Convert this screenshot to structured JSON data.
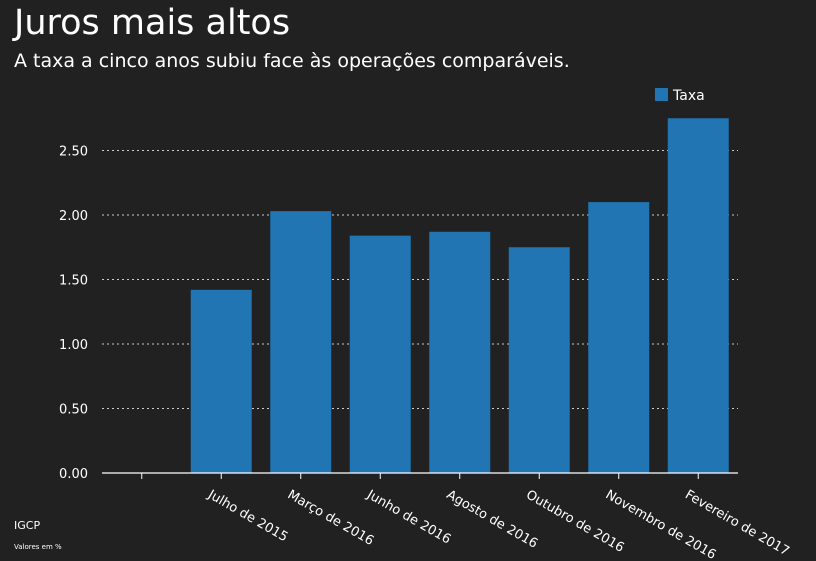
{
  "header": {
    "title": "Juros mais altos",
    "subtitle": "A taxa  a cinco anos subiu face às operações comparáveis."
  },
  "footer": {
    "source": "IGCP",
    "note": "Valores em %"
  },
  "colors": {
    "background": "#212121",
    "bar": "#2175b3",
    "text": "#ffffff",
    "grid": "#cccccc"
  },
  "chart_data": {
    "type": "bar",
    "categories": [
      "",
      "Julho de 2015",
      "Março de 2016",
      "Junho de 2016",
      "Agosto de 2016",
      "Outubro de 2016",
      "Novembro de 2016",
      "Fevereiro de 2017"
    ],
    "series": [
      {
        "name": "Taxa",
        "values": [
          null,
          1.42,
          2.03,
          1.84,
          1.87,
          1.75,
          2.1,
          2.75
        ]
      }
    ],
    "title": "Juros mais altos",
    "subtitle": "A taxa  a cinco anos subiu face às operações comparáveis.",
    "xlabel": "",
    "ylabel": "",
    "ylim": [
      0,
      2.75
    ],
    "yticks": [
      0,
      0.5,
      1.0,
      1.5,
      2.0,
      2.5
    ],
    "ytick_labels": [
      "0.00",
      "0.50",
      "1.00",
      "1.50",
      "2.00",
      "2.50"
    ],
    "grid": true,
    "legend_position": "top-right"
  }
}
